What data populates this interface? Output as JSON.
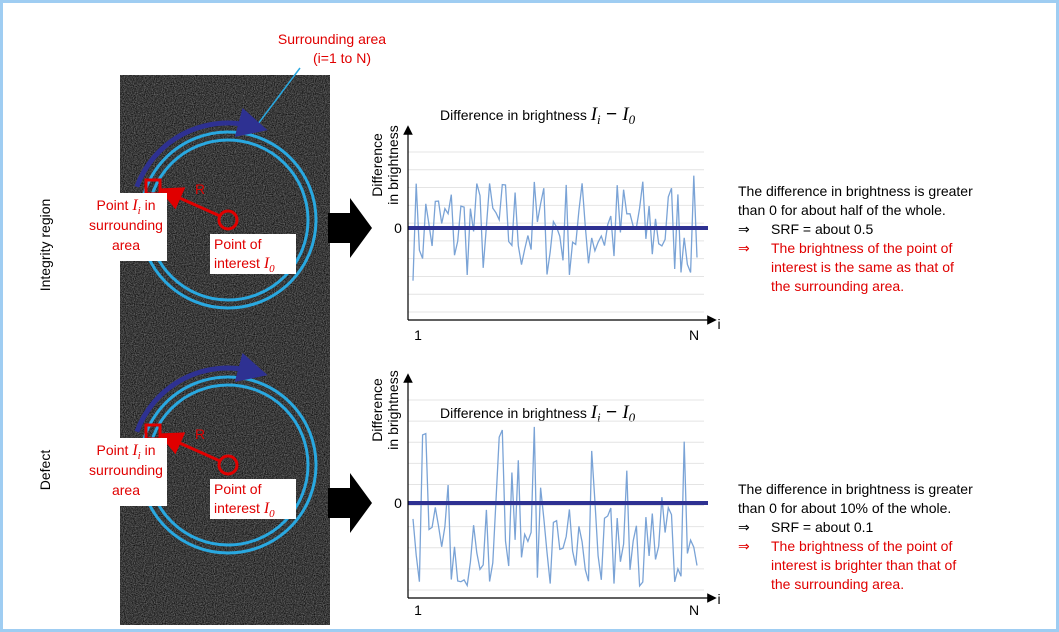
{
  "surrounding_area": [
    "Surrounding area",
    "(i=1 to N)"
  ],
  "panels": [
    {
      "side_label": "Integrity region",
      "radius_label": "R",
      "point_i": {
        "prefix": "Point ",
        "symbol": "I",
        "subscript": "i",
        "suffix": " in",
        "lines": [
          "surrounding",
          "area"
        ]
      },
      "point_of_interest": {
        "line1": "Point of",
        "line2": "interest ",
        "symbol": "I",
        "subscript": "0"
      },
      "chart": {
        "title": "Difference in brightness ",
        "a": "I",
        "a_sub": "i",
        "op": " − ",
        "b": "I",
        "b_sub": "0",
        "y_label": [
          "Difference",
          "in brightness"
        ],
        "zero": "0",
        "x_start": "1",
        "x_end": "N",
        "x_axis": "i"
      },
      "description": [
        "The difference in brightness is greater",
        "than 0 for about half of the whole."
      ],
      "srf": {
        "arrow": "⇒",
        "text": "SRF = about 0.5"
      },
      "conclusion": {
        "arrow": "⇒",
        "lines": [
          "The brightness of the point of",
          "interest is the same as that of",
          "the surrounding area."
        ]
      }
    },
    {
      "side_label": "Defect",
      "radius_label": "R",
      "point_i": {
        "prefix": "Point ",
        "symbol": "I",
        "subscript": "i",
        "suffix": " in",
        "lines": [
          "surrounding",
          "area"
        ]
      },
      "point_of_interest": {
        "line1": "Point of",
        "line2": "interest ",
        "symbol": "I",
        "subscript": "0"
      },
      "chart": {
        "title": "Difference in brightness ",
        "a": "I",
        "a_sub": "i",
        "op": " − ",
        "b": "I",
        "b_sub": "0",
        "y_label": [
          "Difference",
          "in brightness"
        ],
        "zero": "0",
        "x_start": "1",
        "x_end": "N",
        "x_axis": "i"
      },
      "description": [
        "The difference in brightness is greater",
        "than 0 for about 10% of the whole."
      ],
      "srf": {
        "arrow": "⇒",
        "text": "SRF = about 0.1"
      },
      "conclusion": {
        "arrow": "⇒",
        "lines": [
          "The brightness of the point of",
          "interest is brighter than that of",
          "the surrounding area."
        ]
      }
    }
  ]
}
